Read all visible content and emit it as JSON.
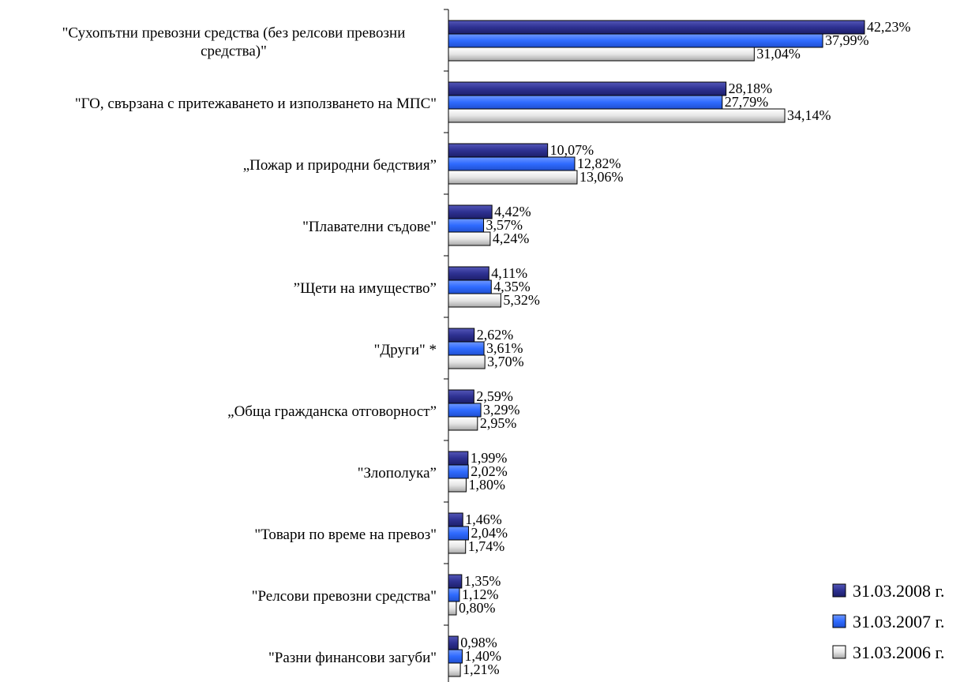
{
  "chart_data": {
    "type": "bar",
    "orientation": "horizontal",
    "categories": [
      [
        "\"Сухопътни превозни средства (без релсови превозни",
        "средства)\""
      ],
      [
        "\"ГО, свързана с притежаването и използването на МПС\""
      ],
      [
        "„Пожар и природни бедствия”"
      ],
      [
        "\"Плавателни съдове\""
      ],
      [
        "”Щети на имущество”"
      ],
      [
        "\"Други\" *"
      ],
      [
        "„Обща гражданска отговорност”"
      ],
      [
        "\"Злополука”"
      ],
      [
        "\"Товари по време на превоз\""
      ],
      [
        "\"Релсови превозни средства\""
      ],
      [
        "\"Разни финансови загуби\""
      ]
    ],
    "series": [
      {
        "name": "31.03.2008 г.",
        "color": "#2E3192",
        "values": [
          42.23,
          28.18,
          10.07,
          4.42,
          4.11,
          2.62,
          2.59,
          1.99,
          1.46,
          1.35,
          0.98
        ],
        "labels": [
          "42,23%",
          "28,18%",
          "10,07%",
          "4,42%",
          "4,11%",
          "2,62%",
          "2,59%",
          "1,99%",
          "1,46%",
          "1,35%",
          "0,98%"
        ]
      },
      {
        "name": "31.03.2007 г.",
        "color": "#2F6BFF",
        "values": [
          37.99,
          27.79,
          12.82,
          3.57,
          4.35,
          3.61,
          3.29,
          2.02,
          2.04,
          1.12,
          1.4
        ],
        "labels": [
          "37,99%",
          "27,79%",
          "12,82%",
          "3,57%",
          "4,35%",
          "3,61%",
          "3,29%",
          "2,02%",
          "2,04%",
          "1,12%",
          "1,40%"
        ]
      },
      {
        "name": "31.03.2006 г.",
        "color": "#E4E4E4",
        "values": [
          31.04,
          34.14,
          13.06,
          4.24,
          5.32,
          3.7,
          2.95,
          1.8,
          1.74,
          0.8,
          1.21
        ],
        "labels": [
          "31,04%",
          "34,14%",
          "13,06%",
          "4,24%",
          "5,32%",
          "3,70%",
          "2,95%",
          "1,80%",
          "1,74%",
          "0,80%",
          "1,21%"
        ]
      }
    ],
    "value_unit": "%",
    "xlim": [
      0,
      42.23
    ],
    "grid": false,
    "legend_position": "bottom-right"
  }
}
